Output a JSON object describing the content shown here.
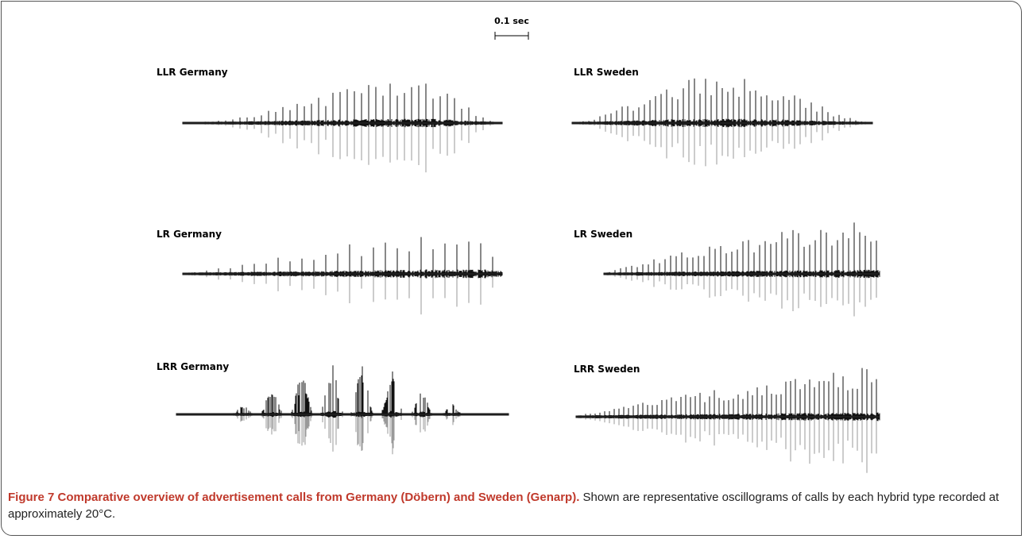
{
  "figure": {
    "scale_label": "0.1 sec",
    "panels": [
      {
        "label": "LLR Germany"
      },
      {
        "label": "LLR Sweden"
      },
      {
        "label": "LR Germany"
      },
      {
        "label": "LR Sweden"
      },
      {
        "label": "LRR Germany"
      },
      {
        "label": "LRR Sweden"
      }
    ],
    "caption": {
      "title": "Figure 7 Comparative overview of advertisement calls from Germany (Döbern) and Sweden (Genarp).",
      "text": "Shown are representative oscillograms of calls by each hybrid type recorded at approximately 20°C."
    }
  }
}
